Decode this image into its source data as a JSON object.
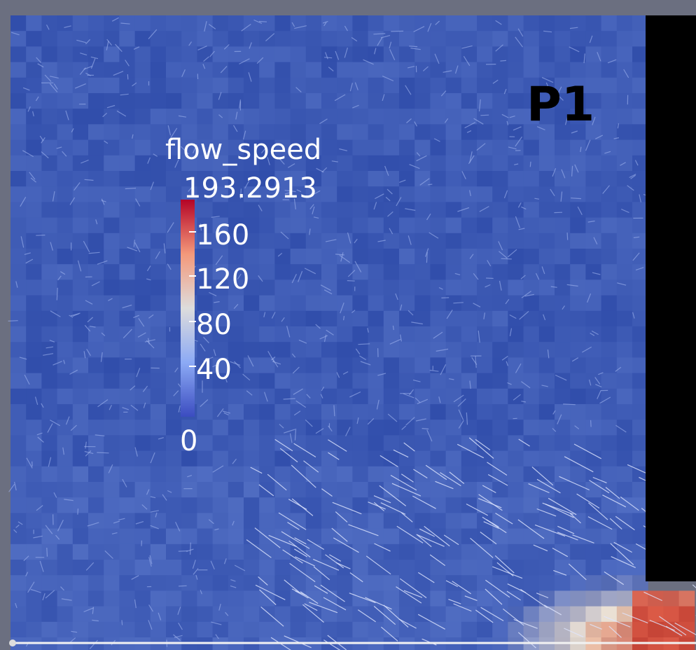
{
  "label": "P1",
  "colorbar": {
    "title": "flow_speed",
    "max_label": "193.2913",
    "ticks": [
      "160",
      "120",
      "80",
      "40"
    ],
    "min_label": "0"
  }
}
